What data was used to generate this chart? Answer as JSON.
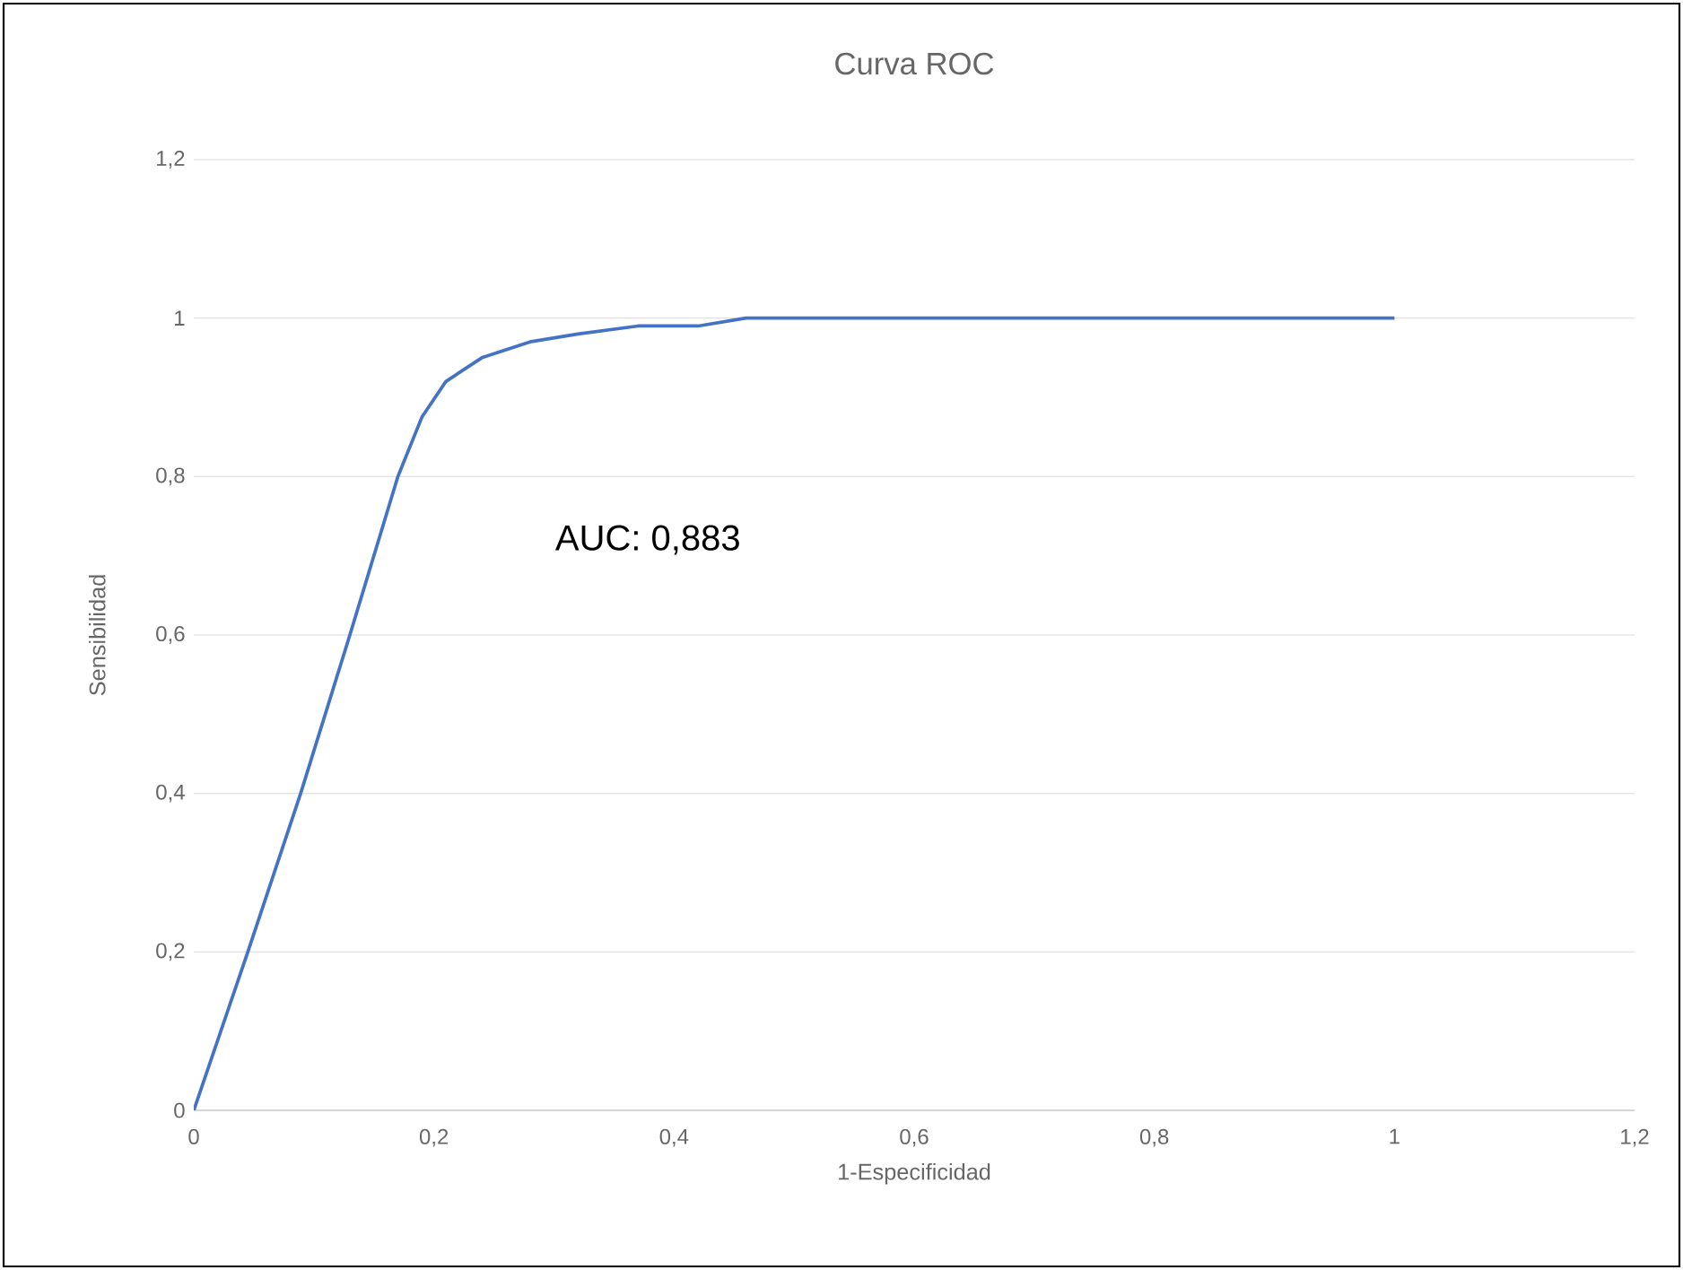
{
  "chart_data": {
    "type": "line",
    "title": "Curva ROC",
    "xlabel": "1-Especificidad",
    "ylabel": "Sensibilidad",
    "annotations": [
      "AUC: 0,883"
    ],
    "x": [
      0,
      0.045,
      0.089,
      0.13,
      0.17,
      0.19,
      0.21,
      0.24,
      0.28,
      0.32,
      0.37,
      0.42,
      0.46,
      1
    ],
    "series": [
      {
        "color": "#4472c4",
        "values": [
          0,
          0.2,
          0.4,
          0.6,
          0.8,
          0.875,
          0.92,
          0.95,
          0.97,
          0.98,
          0.99,
          0.99,
          1,
          1
        ]
      }
    ],
    "xlim": [
      0,
      1.2
    ],
    "ylim": [
      0,
      1.2
    ],
    "xticks": [
      0,
      {
        "value": 0.2,
        "label": "0,2"
      },
      {
        "value": 0.4,
        "label": "0,4"
      },
      {
        "value": 0.6,
        "label": "0,6"
      },
      {
        "value": 0.8,
        "label": "0,8"
      },
      1,
      {
        "value": 1.2,
        "label": "1,2"
      }
    ],
    "yticks": [
      0,
      {
        "value": 0.2,
        "label": "0,2"
      },
      {
        "value": 0.4,
        "label": "0,4"
      },
      {
        "value": 0.6,
        "label": "0,6"
      },
      {
        "value": 0.8,
        "label": "0,8"
      },
      1,
      {
        "value": 1.2,
        "label": "1,2"
      }
    ],
    "grid": "y",
    "marker": "none",
    "line_style": "solid"
  }
}
